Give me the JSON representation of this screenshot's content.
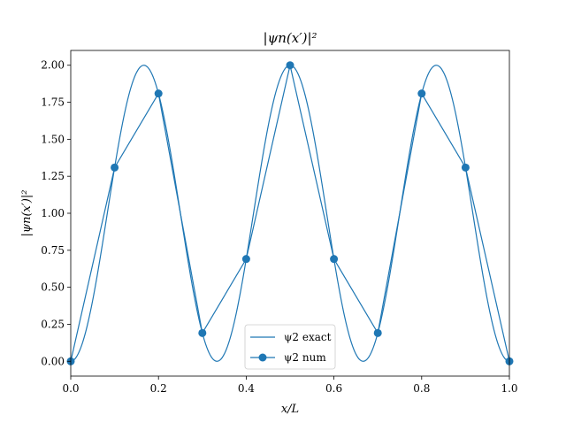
{
  "chart_data": {
    "type": "line",
    "title": "|ψn(x′)|²",
    "xlabel": "x/L",
    "ylabel": "|ψn(x′)|²",
    "xlim": [
      0,
      1
    ],
    "ylim": [
      -0.1,
      2.1
    ],
    "xticks": [
      "0.0",
      "0.2",
      "0.4",
      "0.6",
      "0.8",
      "1.0"
    ],
    "yticks": [
      "0.00",
      "0.25",
      "0.50",
      "0.75",
      "1.00",
      "1.25",
      "1.50",
      "1.75",
      "2.00"
    ],
    "grid": false,
    "legend": "lower-center",
    "series": [
      {
        "name": "ψ2 exact",
        "style": "line",
        "function": "2*sin(3*pi*x)^2",
        "color": "#1f77b4"
      },
      {
        "name": "ψ2 num",
        "style": "line-marker",
        "x": [
          0.0,
          0.1,
          0.2,
          0.3,
          0.4,
          0.5,
          0.6,
          0.7,
          0.8,
          0.9,
          1.0
        ],
        "y": [
          0.0,
          1.309,
          1.809,
          0.191,
          0.691,
          2.0,
          0.691,
          0.191,
          1.809,
          1.309,
          0.0
        ],
        "color": "#1f77b4"
      }
    ]
  }
}
